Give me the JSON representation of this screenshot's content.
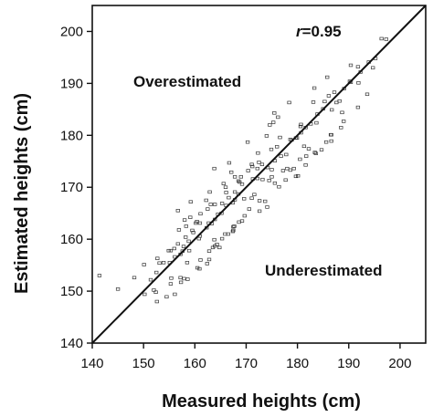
{
  "chart_data": {
    "type": "scatter",
    "xlabel": "Measured heights (cm)",
    "ylabel": "Estimated heights (cm)",
    "xlim": [
      140,
      205
    ],
    "ylim": [
      140,
      205
    ],
    "xticks": [
      140,
      150,
      160,
      170,
      180,
      190,
      200
    ],
    "yticks": [
      140,
      150,
      160,
      170,
      180,
      190,
      200
    ],
    "x_tick_labels": [
      "140",
      "150",
      "160",
      "170",
      "180",
      "190",
      "200"
    ],
    "y_tick_labels": [
      "140",
      "150",
      "160",
      "170",
      "180",
      "190",
      "200"
    ],
    "grid": false,
    "legend": "none",
    "reference_line": {
      "x": [
        140,
        205
      ],
      "y": [
        140,
        205
      ]
    },
    "annotations": {
      "correlation_var": "r",
      "correlation_value": "=0.95",
      "upper_region": "Overestimated",
      "lower_region": "Underestimated"
    },
    "points": {
      "x": [
        141.4,
        145.0,
        148.2,
        152.0,
        154.9,
        156.0,
        156.9,
        157.2,
        157.8,
        158.0,
        158.3,
        158.9,
        159.1,
        160.2,
        160.4,
        161.0,
        161.1,
        162.2,
        162.5,
        162.9,
        163.1,
        164.5,
        165.3,
        165.6,
        166.0,
        166.1,
        167.1,
        167.8,
        167.8,
        168.5,
        168.7,
        169.0,
        170.4,
        171.1,
        171.2,
        172.2,
        172.3,
        172.5,
        174.0,
        175.0,
        176.6,
        176.8,
        179.7,
        180.6,
        180.7,
        183.1,
        183.9,
        186.1,
        187.2,
        187.6,
        190.4,
        191.8,
        192.3,
        194.7,
        196.4,
        150.2,
        151.4,
        152.5,
        153.1,
        153.9,
        155.1,
        155.3,
        156.1,
        156.7,
        157.6,
        158.2,
        158.8,
        159.5,
        159.7,
        160.8,
        161.0,
        162.3,
        162.7,
        163.3,
        163.9,
        163.9,
        165.2,
        166.1,
        166.6,
        167.4,
        167.8,
        168.5,
        169.2,
        169.6,
        171.3,
        172.2,
        173.1,
        173.2,
        174.2,
        174.9,
        175.6,
        176.0,
        177.8,
        178.6,
        178.9,
        179.9,
        180.7,
        181.6,
        182.6,
        183.7,
        185.0,
        185.3,
        186.7,
        188.2,
        189.1,
        190.2,
        191.9,
        193.9,
        195.2,
        197.3,
        150.1,
        152.7,
        156.7,
        159.2,
        166.7,
        163.8,
        170.3,
        174.6,
        175.3,
        175.5,
        176.2,
        183.3,
        178.4,
        190.4,
        185.8,
        157.9,
        164.8,
        162.8,
        162.4,
        167.4,
        181.6,
        179.7,
        188.5,
        186.6,
        179.3,
        152.4,
        152.6,
        154.5,
        156.1,
        155.3,
        157.2,
        158.5,
        158.6,
        160.9,
        161.1,
        162.8,
        163.5,
        163.8,
        164.3,
        165.9,
        166.5,
        167.5,
        167.5,
        168.6,
        169.7,
        171.1,
        171.6,
        172.6,
        172.6,
        174.1,
        175.0,
        175.6,
        176.4,
        177.7,
        178.0,
        180.1,
        180.5,
        181.3,
        182.2,
        183.4,
        183.6,
        185.6,
        186.6,
        188.7,
        189.0,
        191.8,
        193.6,
        155.4,
        157.3,
        160.5,
        163.9,
        165.3,
        167.7,
        169.2,
        170.6,
        173.7,
        174.5,
        177.2,
        178.6,
        181.7,
        184.7,
        186.5
      ],
      "y": [
        153.0,
        150.4,
        152.6,
        150.2,
        157.8,
        158.2,
        161.8,
        157.1,
        158.6,
        163.7,
        162.5,
        157.8,
        164.2,
        163.1,
        163.4,
        163.1,
        164.9,
        167.5,
        165.8,
        169.1,
        166.7,
        164.8,
        166.9,
        170.7,
        170.0,
        169.0,
        172.9,
        167.6,
        172.0,
        171.2,
        171.0,
        172.0,
        173.2,
        174.4,
        174.0,
        173.6,
        176.6,
        174.8,
        179.9,
        173.4,
        179.6,
        176.0,
        179.5,
        181.7,
        180.5,
        186.4,
        184.1,
        187.6,
        188.3,
        186.3,
        190.2,
        193.2,
        192.2,
        193.0,
        198.6,
        149.4,
        152.2,
        153.6,
        155.4,
        155.5,
        155.5,
        157.8,
        156.6,
        159.1,
        157.7,
        160.4,
        159.6,
        161.7,
        161.3,
        160.1,
        160.6,
        162.2,
        163.1,
        163.0,
        166.7,
        163.8,
        165.0,
        166.5,
        168.0,
        167.0,
        169.1,
        168.7,
        170.6,
        167.8,
        171.6,
        171.7,
        174.4,
        171.5,
        173.8,
        177.3,
        175.1,
        177.8,
        176.3,
        179.2,
        179.1,
        179.5,
        182.1,
        181.5,
        182.2,
        182.4,
        185.1,
        186.5,
        184.9,
        186.6,
        189.0,
        190.4,
        190.1,
        194.1,
        194.8,
        198.5,
        155.1,
        156.3,
        165.5,
        167.2,
        174.7,
        173.6,
        178.7,
        182.0,
        182.5,
        184.3,
        183.5,
        189.1,
        186.3,
        193.5,
        191.2,
        152.4,
        158.4,
        156.1,
        155.3,
        161.5,
        174.3,
        172.1,
        181.5,
        178.9,
        173.6,
        149.8,
        148.0,
        148.9,
        149.4,
        151.4,
        152.6,
        155.5,
        152.3,
        154.3,
        156.0,
        157.7,
        158.4,
        159.9,
        159.0,
        161.0,
        161.0,
        161.7,
        162.4,
        163.3,
        164.5,
        167.9,
        168.6,
        167.4,
        165.4,
        166.2,
        172.0,
        170.8,
        170.1,
        171.4,
        173.6,
        172.2,
        175.4,
        177.9,
        177.4,
        176.7,
        176.5,
        178.7,
        180.1,
        184.4,
        182.7,
        185.4,
        187.9,
        152.5,
        151.7,
        154.5,
        158.7,
        160.1,
        162.5,
        163.5,
        165.8,
        167.3,
        171.3,
        173.2,
        173.3,
        176.0,
        177.2,
        180.1
      ]
    }
  }
}
